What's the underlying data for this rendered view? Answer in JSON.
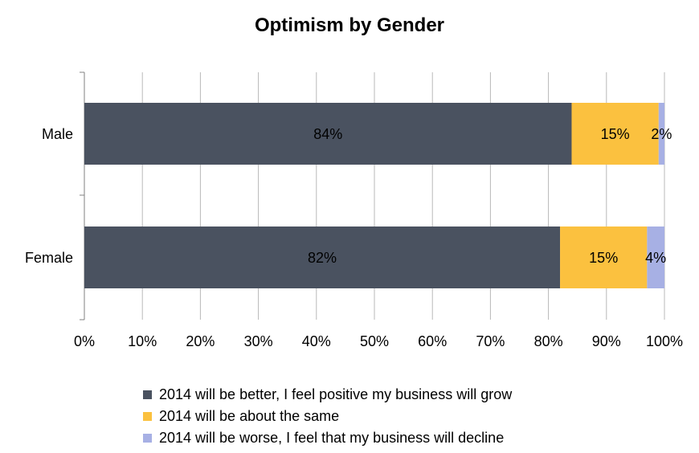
{
  "chart_data": {
    "type": "bar",
    "orientation": "horizontal",
    "stacked": true,
    "title": "Optimism by Gender",
    "categories": [
      "Male",
      "Female"
    ],
    "series": [
      {
        "name": "2014 will be better, I feel positive my business will grow",
        "values": [
          84,
          82
        ],
        "labels": [
          "84%",
          "82%"
        ],
        "color": "#4a5260"
      },
      {
        "name": "2014 will be about the same",
        "values": [
          15,
          15
        ],
        "labels": [
          "15%",
          "15%"
        ],
        "color": "#fbc13f"
      },
      {
        "name": "2014 will be worse, I feel that my business will decline",
        "values": [
          2,
          4
        ],
        "labels": [
          "2%",
          "4%"
        ],
        "color": "#a7b0e4"
      }
    ],
    "xlim": [
      0,
      100
    ],
    "x_ticks": [
      "0%",
      "10%",
      "20%",
      "30%",
      "40%",
      "50%",
      "60%",
      "70%",
      "80%",
      "90%",
      "100%"
    ],
    "grid": true,
    "legend_position": "bottom"
  }
}
